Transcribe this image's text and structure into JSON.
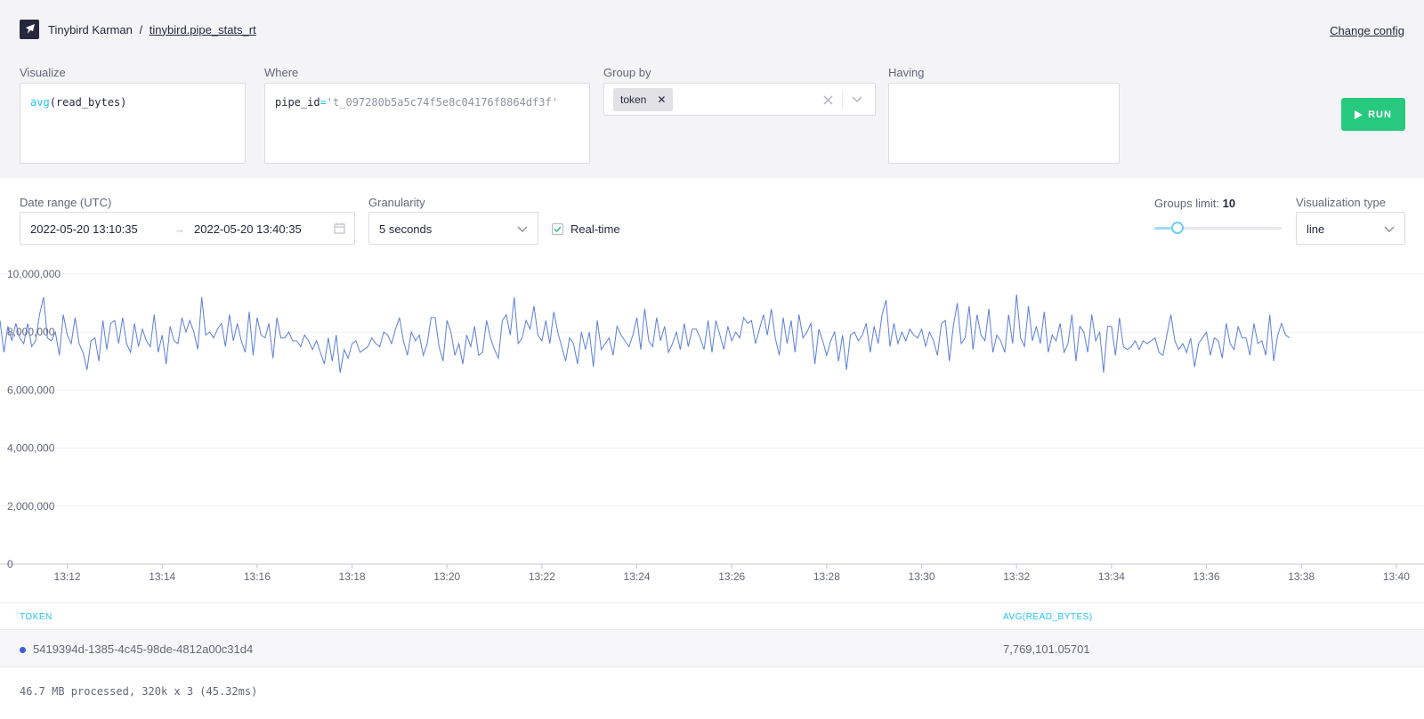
{
  "header": {
    "workspace": "Tinybird Karman",
    "separator": "/",
    "pipe": "tinybird.pipe_stats_rt",
    "change_config": "Change config"
  },
  "query": {
    "visualize_label": "Visualize",
    "visualize_fn": "avg",
    "visualize_open": "(",
    "visualize_arg": "read_bytes",
    "visualize_close": ")",
    "where_label": "Where",
    "where_field": "pipe_id",
    "where_op": "=",
    "where_value": "'t_097280b5a5c74f5e8c04176f8864df3f'",
    "groupby_label": "Group by",
    "groupby_tags": [
      "token"
    ],
    "having_label": "Having",
    "run_label": "RUN"
  },
  "controls": {
    "date_range_label": "Date range (UTC)",
    "date_start": "2022-05-20 13:10:35",
    "date_arrow": "→",
    "date_end": "2022-05-20 13:40:35",
    "granularity_label": "Granularity",
    "granularity_value": "5 seconds",
    "realtime_label": "Real-time",
    "realtime_checked": true,
    "groups_limit_label": "Groups limit:",
    "groups_limit_value": "10",
    "groups_limit_slider_fraction": 0.18,
    "viz_type_label": "Visualization type",
    "viz_type_value": "line"
  },
  "chart_data": {
    "type": "line",
    "title": "",
    "xlabel": "",
    "ylabel": "",
    "x_ticks": [
      "13:12",
      "13:14",
      "13:16",
      "13:18",
      "13:20",
      "13:22",
      "13:24",
      "13:26",
      "13:28",
      "13:30",
      "13:32",
      "13:34",
      "13:36",
      "13:38",
      "13:40"
    ],
    "y_ticks": [
      "0",
      "2,000,000",
      "4,000,000",
      "6,000,000",
      "8,000,000",
      "10,000,000"
    ],
    "ylim": [
      0,
      10000000
    ],
    "xlim": [
      "13:10:35",
      "13:40:35"
    ],
    "grid": true,
    "series": [
      {
        "color": "#5b7fd6",
        "step_seconds": 5,
        "values": [
          8400000,
          7300000,
          8200000,
          7700000,
          8300000,
          7800000,
          7600000,
          8300000,
          7500000,
          7700000,
          8600000,
          9200000,
          7800000,
          7700000,
          8000000,
          7200000,
          8600000,
          7900000,
          7600000,
          8500000,
          7600000,
          7300000,
          6700000,
          7700000,
          7800000,
          7000000,
          8400000,
          7400000,
          8300000,
          8400000,
          7600000,
          8500000,
          7600000,
          7300000,
          8300000,
          7500000,
          8100000,
          7700000,
          7500000,
          8600000,
          7300000,
          7900000,
          6900000,
          8200000,
          7700000,
          7600000,
          8500000,
          8000000,
          8400000,
          8000000,
          7400000,
          9200000,
          7900000,
          8000000,
          7800000,
          8100000,
          8300000,
          7500000,
          8600000,
          7700000,
          8300000,
          7700000,
          7300000,
          8700000,
          7200000,
          8500000,
          7900000,
          7800000,
          8300000,
          7100000,
          8500000,
          7800000,
          7800000,
          8000000,
          7700000,
          7700000,
          7500000,
          7900000,
          7700000,
          7400000,
          7700000,
          7300000,
          6900000,
          7800000,
          7000000,
          7900000,
          6600000,
          7400000,
          7100000,
          7600000,
          7700000,
          7300000,
          7400000,
          7500000,
          7800000,
          7600000,
          7500000,
          8000000,
          7900000,
          7600000,
          8100000,
          8500000,
          7700000,
          7200000,
          8000000,
          7700000,
          7900000,
          7200000,
          7600000,
          8500000,
          8500000,
          7500000,
          7000000,
          8400000,
          8000000,
          7200000,
          7600000,
          6900000,
          7900000,
          7500000,
          8200000,
          7200000,
          7300000,
          8400000,
          7800000,
          7400000,
          7100000,
          8400000,
          8600000,
          7900000,
          9200000,
          7600000,
          7800000,
          8400000,
          8100000,
          8900000,
          7900000,
          7700000,
          8400000,
          7600000,
          8700000,
          8000000,
          7500000,
          7000000,
          7800000,
          7600000,
          6900000,
          8000000,
          7400000,
          8000000,
          6800000,
          8400000,
          7400000,
          7600000,
          7800000,
          7200000,
          8200000,
          7900000,
          7700000,
          7500000,
          7900000,
          8500000,
          7400000,
          8800000,
          7700000,
          7500000,
          8500000,
          7700000,
          8200000,
          7300000,
          7600000,
          8000000,
          7400000,
          8300000,
          7500000,
          8100000,
          8100000,
          7800000,
          7400000,
          8400000,
          7300000,
          8400000,
          7900000,
          7400000,
          8200000,
          7700000,
          8000000,
          7800000,
          8500000,
          8300000,
          8400000,
          7600000,
          8100000,
          8600000,
          7900000,
          8800000,
          7800000,
          7200000,
          8500000,
          7600000,
          8400000,
          7300000,
          8600000,
          7800000,
          8000000,
          8300000,
          6900000,
          8100000,
          7700000,
          7200000,
          7700000,
          8000000,
          7000000,
          7900000,
          6700000,
          7900000,
          8000000,
          7700000,
          7900000,
          8300000,
          7300000,
          8200000,
          7600000,
          8600000,
          9100000,
          7500000,
          8300000,
          7600000,
          8000000,
          7700000,
          8100000,
          7900000,
          7800000,
          8100000,
          7500000,
          8000000,
          7700000,
          7200000,
          8300000,
          8400000,
          7000000,
          8200000,
          9000000,
          7600000,
          7800000,
          8900000,
          7400000,
          8600000,
          7900000,
          7700000,
          8800000,
          7300000,
          7900000,
          7700000,
          7300000,
          8600000,
          7600000,
          9300000,
          7800000,
          7500000,
          8900000,
          7700000,
          8200000,
          7600000,
          8700000,
          7300000,
          7900000,
          7700000,
          8300000,
          7300000,
          7600000,
          8600000,
          7000000,
          8200000,
          8000000,
          7300000,
          8600000,
          7700000,
          8000000,
          6600000,
          8200000,
          8200000,
          7200000,
          8500000,
          7500000,
          7400000,
          7500000,
          7700000,
          7400000,
          7700000,
          7600000,
          7700000,
          7800000,
          7300000,
          7200000,
          7900000,
          8600000,
          7700000,
          7400000,
          7600000,
          7300000,
          7800000,
          6800000,
          7600000,
          7800000,
          8000000,
          7200000,
          7800000,
          7700000,
          7100000,
          8300000,
          7600000,
          7400000,
          8200000,
          7800000,
          7800000,
          7200000,
          8300000,
          7600000,
          7700000,
          7200000,
          8600000,
          7000000,
          7900000,
          8300000,
          7900000,
          7800000
        ]
      }
    ]
  },
  "table": {
    "columns": [
      "TOKEN",
      "AVG(READ_BYTES)"
    ],
    "rows": [
      {
        "token": "5419394d-1385-4c45-98de-4812a00c31d4",
        "value": "7,769,101.05701",
        "color": "#3a5ed4"
      }
    ]
  },
  "footer": {
    "stats": "46.7 MB processed, 320k x 3 (45.32ms)"
  }
}
